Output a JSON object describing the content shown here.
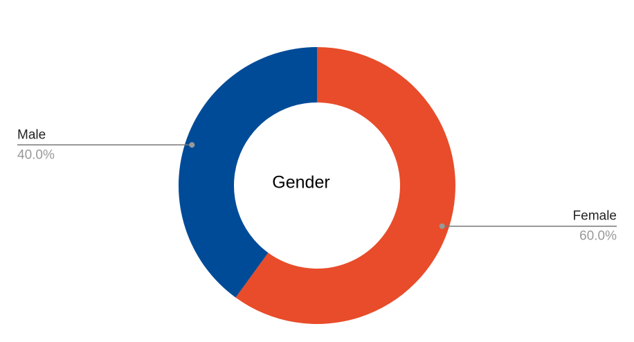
{
  "chart_data": {
    "type": "pie",
    "donut": true,
    "title": "Gender",
    "categories": [
      "Female",
      "Male"
    ],
    "values": [
      60,
      40
    ],
    "value_labels": [
      "60.0%",
      "40.0%"
    ],
    "colors": [
      "#e84c2a",
      "#004b97"
    ]
  }
}
